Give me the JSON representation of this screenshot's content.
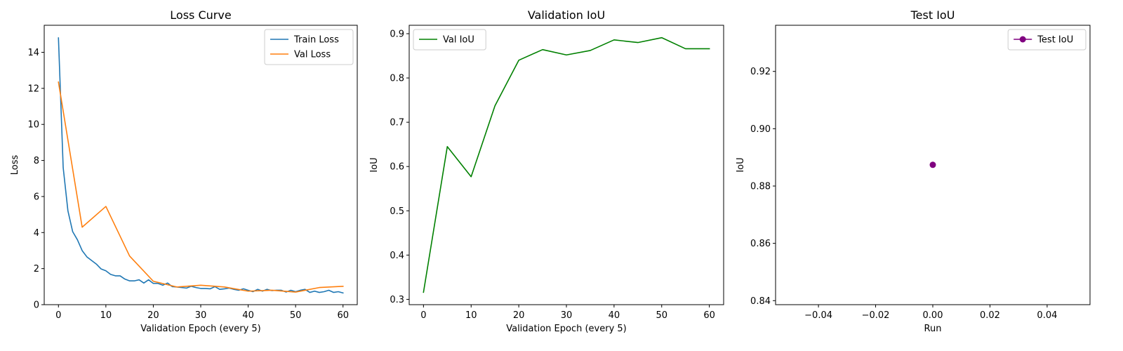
{
  "chart_data": [
    {
      "type": "line",
      "title": "Loss Curve",
      "xlabel": "Validation Epoch (every 5)",
      "ylabel": "Loss",
      "xlim": [
        -3,
        63
      ],
      "ylim": [
        0,
        15.5
      ],
      "xticks": [
        0,
        10,
        20,
        30,
        40,
        50,
        60
      ],
      "xtick_labels": [
        "0",
        "10",
        "20",
        "30",
        "40",
        "50",
        "60"
      ],
      "yticks": [
        0,
        2,
        4,
        6,
        8,
        10,
        12,
        14
      ],
      "ytick_labels": [
        "0",
        "2",
        "4",
        "6",
        "8",
        "10",
        "12",
        "14"
      ],
      "grid": false,
      "legend": "top-right",
      "series": [
        {
          "name": "Train Loss",
          "color": "#1f77b4",
          "marker": "none",
          "x": [
            0,
            1,
            2,
            3,
            4,
            5,
            6,
            7,
            8,
            9,
            10,
            11,
            12,
            13,
            14,
            15,
            16,
            17,
            18,
            19,
            20,
            21,
            22,
            23,
            24,
            25,
            26,
            27,
            28,
            29,
            30,
            31,
            32,
            33,
            34,
            35,
            36,
            37,
            38,
            39,
            40,
            41,
            42,
            43,
            44,
            45,
            46,
            47,
            48,
            49,
            50,
            51,
            52,
            53,
            54,
            55,
            56,
            57,
            58,
            59,
            60
          ],
          "y": [
            14.8,
            7.6,
            5.2,
            4.05,
            3.6,
            3.0,
            2.65,
            2.45,
            2.25,
            1.98,
            1.88,
            1.68,
            1.6,
            1.6,
            1.42,
            1.32,
            1.32,
            1.38,
            1.2,
            1.38,
            1.18,
            1.18,
            1.08,
            1.2,
            1.0,
            0.98,
            0.95,
            0.92,
            1.02,
            0.95,
            0.9,
            0.9,
            0.88,
            1.0,
            0.85,
            0.88,
            0.92,
            0.85,
            0.8,
            0.88,
            0.8,
            0.72,
            0.85,
            0.75,
            0.85,
            0.78,
            0.8,
            0.8,
            0.7,
            0.8,
            0.72,
            0.8,
            0.85,
            0.68,
            0.75,
            0.68,
            0.72,
            0.8,
            0.68,
            0.72,
            0.65
          ]
        },
        {
          "name": "Val Loss",
          "color": "#ff7f0e",
          "marker": "none",
          "x": [
            0,
            5,
            10,
            15,
            20,
            25,
            30,
            35,
            40,
            45,
            50,
            55,
            60
          ],
          "y": [
            12.35,
            4.3,
            5.45,
            2.7,
            1.3,
            0.98,
            1.08,
            0.98,
            0.75,
            0.8,
            0.7,
            0.95,
            1.02
          ]
        }
      ]
    },
    {
      "type": "line",
      "title": "Validation IoU",
      "xlabel": "Validation Epoch (every 5)",
      "ylabel": "IoU",
      "xlim": [
        -3,
        63
      ],
      "ylim": [
        0.288,
        0.919
      ],
      "xticks": [
        0,
        10,
        20,
        30,
        40,
        50,
        60
      ],
      "xtick_labels": [
        "0",
        "10",
        "20",
        "30",
        "40",
        "50",
        "60"
      ],
      "yticks": [
        0.3,
        0.4,
        0.5,
        0.6,
        0.7,
        0.8,
        0.9
      ],
      "ytick_labels": [
        "0.3",
        "0.4",
        "0.5",
        "0.6",
        "0.7",
        "0.8",
        "0.9"
      ],
      "grid": false,
      "legend": "top-left",
      "series": [
        {
          "name": "Val IoU",
          "color": "#008000",
          "marker": "none",
          "x": [
            0,
            5,
            10,
            15,
            20,
            25,
            30,
            35,
            40,
            45,
            50,
            55,
            60
          ],
          "y": [
            0.316,
            0.645,
            0.577,
            0.737,
            0.84,
            0.864,
            0.852,
            0.862,
            0.886,
            0.88,
            0.891,
            0.866,
            0.866
          ]
        }
      ]
    },
    {
      "type": "line",
      "title": "Test IoU",
      "xlabel": "Run",
      "ylabel": "IoU",
      "xlim": [
        -0.055,
        0.055
      ],
      "ylim": [
        0.8386,
        0.9361
      ],
      "xticks": [
        -0.04,
        -0.02,
        0.0,
        0.02,
        0.04
      ],
      "xtick_labels": [
        "−0.04",
        "−0.02",
        "0.00",
        "0.02",
        "0.04"
      ],
      "yticks": [
        0.84,
        0.86,
        0.88,
        0.9,
        0.92
      ],
      "ytick_labels": [
        "0.84",
        "0.86",
        "0.88",
        "0.90",
        "0.92"
      ],
      "grid": false,
      "legend": "top-right",
      "series": [
        {
          "name": "Test IoU",
          "color": "#800080",
          "marker": "circle",
          "x": [
            0
          ],
          "y": [
            0.8874
          ]
        }
      ]
    }
  ]
}
